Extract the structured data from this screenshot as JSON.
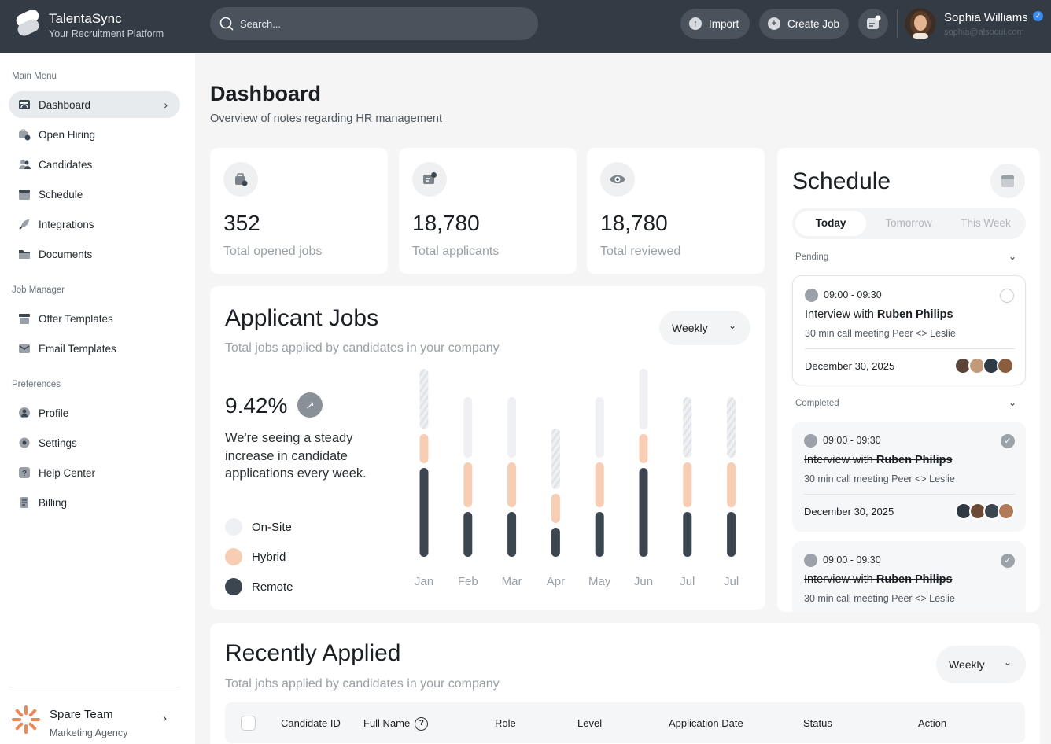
{
  "header": {
    "brand_name": "TalentaSync",
    "brand_tagline": "Your Recruitment Platform",
    "search_placeholder": "Search...",
    "import_label": "Import",
    "create_job_label": "Create Job",
    "user_name": "Sophia Williams",
    "user_email": "sophia@alsocui.com"
  },
  "sidebar": {
    "sections": [
      "Main Menu",
      "Job Manager",
      "Preferences"
    ],
    "main_menu": [
      {
        "label": "Dashboard",
        "icon": "dashboard-icon",
        "active": true
      },
      {
        "label": "Open Hiring",
        "icon": "briefcase-clock-icon"
      },
      {
        "label": "Candidates",
        "icon": "users-icon"
      },
      {
        "label": "Schedule",
        "icon": "calendar-icon"
      },
      {
        "label": "Integrations",
        "icon": "rocket-icon"
      },
      {
        "label": "Documents",
        "icon": "folder-icon"
      }
    ],
    "job_manager": [
      {
        "label": "Offer Templates",
        "icon": "archive-icon"
      },
      {
        "label": "Email Templates",
        "icon": "mail-icon"
      }
    ],
    "preferences": [
      {
        "label": "Profile",
        "icon": "user-circle-icon"
      },
      {
        "label": "Settings",
        "icon": "gear-icon"
      },
      {
        "label": "Help Center",
        "icon": "question-icon"
      },
      {
        "label": "Billing",
        "icon": "receipt-icon"
      }
    ],
    "team": {
      "name": "Spare Team",
      "subtitle": "Marketing Agency"
    }
  },
  "page": {
    "title": "Dashboard",
    "subtitle": "Overview of notes regarding HR management"
  },
  "stats": [
    {
      "value": "352",
      "label": "Total opened jobs",
      "icon": "briefcase-icon"
    },
    {
      "value": "18,780",
      "label": "Total applicants",
      "icon": "id-card-icon"
    },
    {
      "value": "18,780",
      "label": "Total reviewed",
      "icon": "eye-icon"
    }
  ],
  "applicant_jobs": {
    "title": "Applicant Jobs",
    "subtitle": "Total jobs applied by candidates in your company",
    "period": "Weekly",
    "percent": "9.42%",
    "description": "We're seeing a steady increase in candidate applications every week.",
    "legend": [
      {
        "label": "On-Site",
        "color": "#eef0f3"
      },
      {
        "label": "Hybrid",
        "color": "#f7cdb3"
      },
      {
        "label": "Remote",
        "color": "#3c4651"
      }
    ]
  },
  "chart_data": {
    "type": "bar",
    "stacked": true,
    "categories": [
      "Jan",
      "Feb",
      "Mar",
      "Apr",
      "May",
      "Jun",
      "Jul",
      "Jul"
    ],
    "series": [
      {
        "name": "Remote",
        "color": "#3c4651",
        "values": [
          113,
          57,
          57,
          37,
          57,
          113,
          57,
          57
        ]
      },
      {
        "name": "Hybrid",
        "color": "#f7cdb3",
        "values": [
          37,
          57,
          57,
          37,
          57,
          37,
          57,
          57
        ]
      },
      {
        "name": "On-Site",
        "color": "#eef0f3",
        "values": [
          77,
          77,
          77,
          77,
          77,
          77,
          77,
          77
        ]
      }
    ],
    "hatched_onsite": [
      true,
      false,
      false,
      true,
      false,
      false,
      true,
      true
    ]
  },
  "schedule": {
    "title": "Schedule",
    "tabs": [
      "Today",
      "Tomorrow",
      "This Week"
    ],
    "active_tab": 0,
    "pending_label": "Pending",
    "completed_label": "Completed",
    "events": [
      {
        "time": "09:00 - 09:30",
        "title_prefix": "Interview with ",
        "title_name": "Ruben Philips",
        "meta": "30 min call meeting Peer <> Leslie",
        "date": "December 30, 2025",
        "status": "pending"
      },
      {
        "time": "09:00 - 09:30",
        "title_prefix": "Interview with ",
        "title_name": "Ruben Philips",
        "meta": "30 min call meeting Peer <> Leslie",
        "date": "December 30, 2025",
        "status": "completed"
      },
      {
        "time": "09:00 - 09:30",
        "title_prefix": "Interview with ",
        "title_name": "Ruben Philips",
        "meta": "30 min call meeting Peer <> Leslie",
        "status": "completed"
      }
    ]
  },
  "recently_applied": {
    "title": "Recently Applied",
    "subtitle": "Total jobs applied by candidates in your company",
    "period": "Weekly",
    "columns": [
      "Candidate ID",
      "Full Name",
      "Role",
      "Level",
      "Application Date",
      "Status",
      "Action"
    ]
  }
}
